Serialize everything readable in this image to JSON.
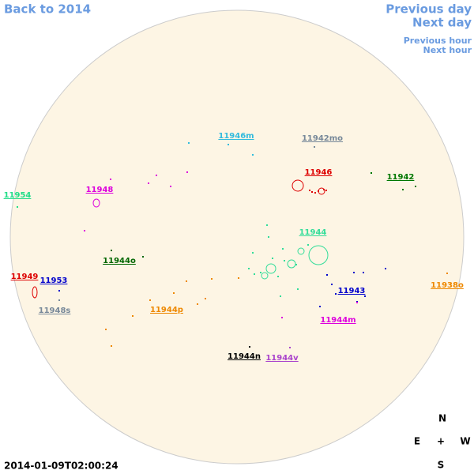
{
  "nav": {
    "back": "Back to 2014",
    "previous_day": "Previous day",
    "next_day": "Next day",
    "previous_hour": "Previous hour",
    "next_hour": "Next hour"
  },
  "regions": [
    {
      "label": "11946m",
      "color": "#33bbdd"
    },
    {
      "label": "11942mo",
      "color": "#778899"
    },
    {
      "label": "11946",
      "color": "#dd0000"
    },
    {
      "label": "11942",
      "color": "#007700"
    },
    {
      "label": "11954",
      "color": "#22dd88"
    },
    {
      "label": "11948",
      "color": "#dd00dd"
    },
    {
      "label": "11944",
      "color": "#33dd99"
    },
    {
      "label": "11944o",
      "color": "#006600"
    },
    {
      "label": "11949",
      "color": "#dd0000"
    },
    {
      "label": "11953",
      "color": "#0000cc"
    },
    {
      "label": "11943",
      "color": "#0000cc"
    },
    {
      "label": "11938o",
      "color": "#ee8800"
    },
    {
      "label": "11948s",
      "color": "#778899"
    },
    {
      "label": "11944p",
      "color": "#ee8800"
    },
    {
      "label": "11944m",
      "color": "#dd00dd"
    },
    {
      "label": "11944n",
      "color": "#000000"
    },
    {
      "label": "11944v",
      "color": "#aa44cc"
    }
  ],
  "compass": {
    "north": "N",
    "east": "E",
    "center": "+",
    "west": "W",
    "south": "S"
  },
  "timestamp": "2014-01-09T02:00:24"
}
